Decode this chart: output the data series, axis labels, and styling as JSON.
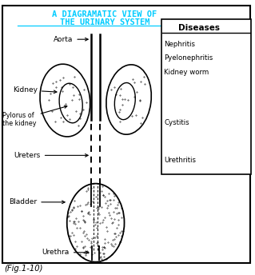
{
  "title_line1": "A DIAGRAMATIC VIEW OF",
  "title_line2": "THE URINARY SYSTEM",
  "title_color": "#00CCFF",
  "bg_color": "#FFFFFF",
  "border_color": "#000000",
  "diseases_title": "Diseases",
  "diseases_list1": [
    "Nephritis",
    "Pyelonephritis",
    "Kidney worm"
  ],
  "diseases_list2": "Cystitis",
  "diseases_list3": "Urethritis",
  "fig_label": "(Fig.1-10)"
}
